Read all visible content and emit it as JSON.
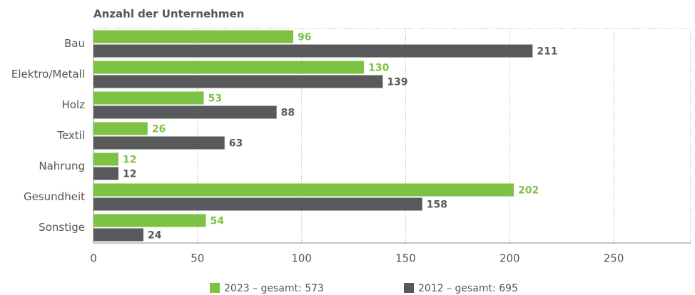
{
  "chart_data": {
    "type": "hbar",
    "title": "Anzahl der Unternehmen",
    "categories": [
      "Bau",
      "Elektro/Metall",
      "Holz",
      "Textil",
      "Nahrung",
      "Gesundheit",
      "Sonstige"
    ],
    "series": [
      {
        "name": "2023 – gesamt: 573",
        "color": "#7dc242",
        "values": [
          96,
          130,
          53,
          26,
          12,
          202,
          54
        ]
      },
      {
        "name": "2012 – gesamt: 695",
        "color": "#58595b",
        "values": [
          211,
          139,
          88,
          63,
          12,
          158,
          24
        ]
      }
    ],
    "xlim": [
      0,
      287
    ],
    "xticks": [
      0,
      50,
      100,
      150,
      200,
      250
    ],
    "grid": true,
    "legend": "bottom"
  }
}
